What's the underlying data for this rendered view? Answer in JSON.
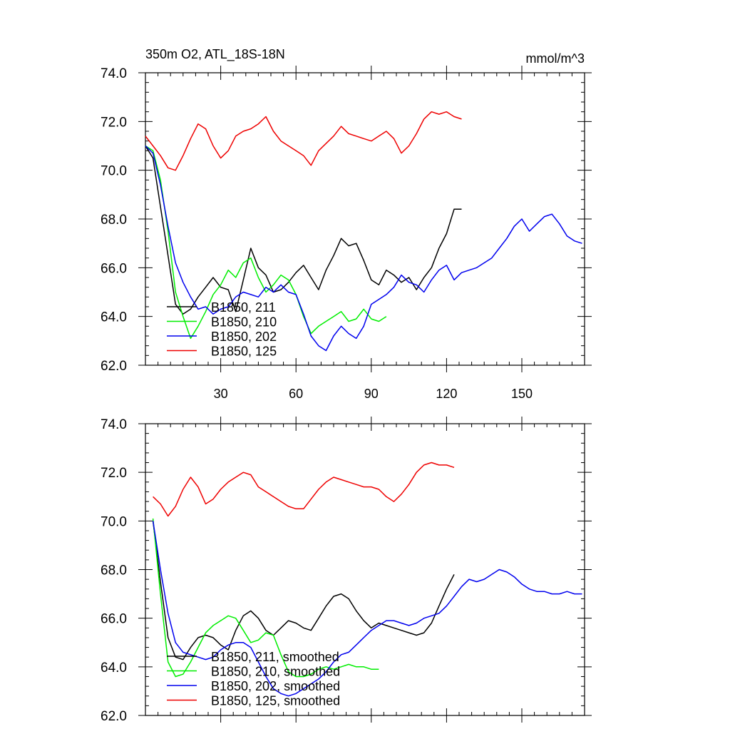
{
  "chart_data": [
    {
      "type": "line",
      "title": "350m O2, ATL_18S-18N",
      "units": "mmol/m^3",
      "xlabel": "",
      "ylabel": "",
      "xlim": [
        0,
        175
      ],
      "ylim": [
        62,
        74
      ],
      "xticks": [
        30,
        60,
        90,
        120,
        150
      ],
      "yticks": [
        62,
        64,
        66,
        68,
        70,
        72,
        74
      ],
      "ytick_labels": [
        "62.0",
        "64.0",
        "66.0",
        "68.0",
        "70.0",
        "72.0",
        "74.0"
      ],
      "grid": false,
      "legend": "lower-left",
      "series": [
        {
          "name": "B1850, 211",
          "color": "#000000",
          "x": [
            0,
            3,
            6,
            9,
            12,
            15,
            18,
            21,
            24,
            27,
            30,
            33,
            36,
            39,
            42,
            45,
            48,
            51,
            54,
            57,
            60,
            63,
            66,
            69,
            72,
            75,
            78,
            81,
            84,
            87,
            90,
            93,
            96,
            99,
            102,
            105,
            108,
            111,
            114,
            117,
            120,
            123,
            126
          ],
          "y": [
            71.0,
            70.5,
            68.5,
            66.5,
            64.5,
            64.1,
            64.3,
            64.8,
            65.2,
            65.6,
            65.2,
            65.1,
            64.2,
            65.5,
            66.8,
            66.0,
            65.7,
            65.0,
            65.1,
            65.4,
            65.8,
            66.1,
            65.6,
            65.1,
            65.9,
            66.5,
            67.2,
            66.9,
            67.0,
            66.3,
            65.5,
            65.3,
            65.9,
            65.7,
            65.4,
            65.6,
            65.1,
            65.6,
            66.0,
            66.8,
            67.4,
            68.4,
            68.4
          ]
        },
        {
          "name": "B1850, 210",
          "color": "#00ee00",
          "x": [
            0,
            3,
            6,
            9,
            12,
            15,
            18,
            21,
            24,
            27,
            30,
            33,
            36,
            39,
            42,
            45,
            48,
            51,
            54,
            57,
            60,
            63,
            66,
            69,
            72,
            75,
            78,
            81,
            84,
            87,
            90,
            93,
            96
          ],
          "y": [
            71.0,
            70.8,
            69.6,
            67.5,
            65.0,
            64.0,
            63.1,
            63.6,
            64.2,
            64.9,
            65.3,
            65.9,
            65.6,
            66.2,
            66.4,
            65.6,
            65.0,
            65.3,
            65.7,
            65.5,
            64.9,
            64.0,
            63.3,
            63.6,
            63.8,
            64.0,
            64.2,
            63.8,
            63.9,
            64.3,
            63.9,
            63.8,
            64.0
          ]
        },
        {
          "name": "B1850, 202",
          "color": "#0000ee",
          "x": [
            0,
            3,
            6,
            9,
            12,
            15,
            18,
            21,
            24,
            27,
            30,
            33,
            36,
            39,
            42,
            45,
            48,
            51,
            54,
            57,
            60,
            63,
            66,
            69,
            72,
            75,
            78,
            81,
            84,
            87,
            90,
            93,
            96,
            99,
            102,
            105,
            108,
            111,
            114,
            117,
            120,
            123,
            126,
            129,
            132,
            135,
            138,
            141,
            144,
            147,
            150,
            153,
            156,
            159,
            162,
            165,
            168,
            171,
            174
          ],
          "y": [
            71.0,
            70.7,
            69.4,
            67.7,
            66.2,
            65.4,
            64.8,
            64.3,
            64.4,
            64.1,
            64.3,
            64.4,
            64.8,
            65.0,
            64.9,
            64.8,
            65.2,
            65.0,
            65.3,
            65.0,
            64.9,
            64.1,
            63.2,
            62.8,
            62.6,
            63.2,
            63.6,
            63.3,
            63.1,
            63.6,
            64.5,
            64.7,
            64.9,
            65.2,
            65.7,
            65.4,
            65.3,
            65.0,
            65.5,
            65.9,
            66.1,
            65.5,
            65.8,
            65.9,
            66.0,
            66.2,
            66.4,
            66.8,
            67.2,
            67.7,
            68.0,
            67.5,
            67.8,
            68.1,
            68.2,
            67.8,
            67.3,
            67.1,
            67.0
          ]
        },
        {
          "name": "B1850, 125",
          "color": "#ee0000",
          "x": [
            0,
            3,
            6,
            9,
            12,
            15,
            18,
            21,
            24,
            27,
            30,
            33,
            36,
            39,
            42,
            45,
            48,
            51,
            54,
            57,
            60,
            63,
            66,
            69,
            72,
            75,
            78,
            81,
            84,
            87,
            90,
            93,
            96,
            99,
            102,
            105,
            108,
            111,
            114,
            117,
            120,
            123,
            126
          ],
          "y": [
            71.4,
            71.0,
            70.6,
            70.1,
            70.0,
            70.6,
            71.3,
            71.9,
            71.7,
            71.0,
            70.5,
            70.8,
            71.4,
            71.6,
            71.7,
            71.9,
            72.2,
            71.6,
            71.2,
            71.0,
            70.8,
            70.6,
            70.2,
            70.8,
            71.1,
            71.4,
            71.8,
            71.5,
            71.4,
            71.3,
            71.2,
            71.4,
            71.6,
            71.3,
            70.7,
            71.0,
            71.5,
            72.1,
            72.4,
            72.3,
            72.4,
            72.2,
            72.1
          ]
        }
      ]
    },
    {
      "type": "line",
      "title": "",
      "xlabel": "",
      "ylabel": "",
      "xlim": [
        0,
        175
      ],
      "ylim": [
        62,
        74
      ],
      "xticks": [
        30,
        60,
        90,
        120,
        150
      ],
      "yticks": [
        62,
        64,
        66,
        68,
        70,
        72,
        74
      ],
      "ytick_labels": [
        "62.0",
        "64.0",
        "66.0",
        "68.0",
        "70.0",
        "72.0",
        "74.0"
      ],
      "grid": false,
      "legend": "lower-left",
      "series": [
        {
          "name": "B1850, 211, smoothed",
          "color": "#000000",
          "x": [
            3,
            6,
            9,
            12,
            15,
            18,
            21,
            24,
            27,
            30,
            33,
            36,
            39,
            42,
            45,
            48,
            51,
            54,
            57,
            60,
            63,
            66,
            69,
            72,
            75,
            78,
            81,
            84,
            87,
            90,
            93,
            96,
            99,
            102,
            105,
            108,
            111,
            114,
            117,
            120,
            123
          ],
          "y": [
            70.0,
            67.5,
            65.2,
            64.4,
            64.3,
            64.8,
            65.2,
            65.3,
            65.2,
            64.9,
            64.7,
            65.5,
            66.1,
            66.3,
            66.0,
            65.5,
            65.3,
            65.6,
            65.9,
            65.8,
            65.6,
            65.5,
            66.0,
            66.5,
            66.9,
            67.0,
            66.8,
            66.3,
            65.9,
            65.6,
            65.8,
            65.7,
            65.6,
            65.5,
            65.4,
            65.3,
            65.4,
            65.8,
            66.5,
            67.2,
            67.8
          ]
        },
        {
          "name": "B1850, 210, smoothed",
          "color": "#00ee00",
          "x": [
            3,
            6,
            9,
            12,
            15,
            18,
            21,
            24,
            27,
            30,
            33,
            36,
            39,
            42,
            45,
            48,
            51,
            54,
            57,
            60,
            63,
            66,
            69,
            72,
            75,
            78,
            81,
            84,
            87,
            90,
            93
          ],
          "y": [
            70.1,
            67.0,
            64.2,
            63.6,
            63.7,
            64.2,
            64.8,
            65.4,
            65.7,
            65.9,
            66.1,
            66.0,
            65.5,
            65.0,
            65.1,
            65.4,
            65.3,
            64.5,
            63.8,
            63.6,
            63.6,
            63.7,
            63.9,
            64.0,
            63.9,
            64.0,
            64.1,
            64.0,
            64.0,
            63.9,
            63.9
          ]
        },
        {
          "name": "B1850, 202, smoothed",
          "color": "#0000ee",
          "x": [
            3,
            6,
            9,
            12,
            15,
            18,
            21,
            24,
            27,
            30,
            33,
            36,
            39,
            42,
            45,
            48,
            51,
            54,
            57,
            60,
            63,
            66,
            69,
            72,
            75,
            78,
            81,
            84,
            87,
            90,
            93,
            96,
            99,
            102,
            105,
            108,
            111,
            114,
            117,
            120,
            123,
            126,
            129,
            132,
            135,
            138,
            141,
            144,
            147,
            150,
            153,
            156,
            159,
            162,
            165,
            168,
            171,
            174
          ],
          "y": [
            70.0,
            68.0,
            66.2,
            65.0,
            64.6,
            64.5,
            64.4,
            64.3,
            64.4,
            64.7,
            64.9,
            65.0,
            65.0,
            64.8,
            64.2,
            63.6,
            63.1,
            62.9,
            62.8,
            62.9,
            63.1,
            63.3,
            63.5,
            63.8,
            64.2,
            64.5,
            64.6,
            64.9,
            65.2,
            65.5,
            65.7,
            65.9,
            65.9,
            65.8,
            65.7,
            65.8,
            66.0,
            66.1,
            66.2,
            66.5,
            66.9,
            67.3,
            67.6,
            67.5,
            67.6,
            67.8,
            68.0,
            67.9,
            67.7,
            67.4,
            67.2,
            67.1,
            67.1,
            67.0,
            67.0,
            67.1,
            67.0,
            67.0
          ]
        },
        {
          "name": "B1850, 125, smoothed",
          "color": "#ee0000",
          "x": [
            3,
            6,
            9,
            12,
            15,
            18,
            21,
            24,
            27,
            30,
            33,
            36,
            39,
            42,
            45,
            48,
            51,
            54,
            57,
            60,
            63,
            66,
            69,
            72,
            75,
            78,
            81,
            84,
            87,
            90,
            93,
            96,
            99,
            102,
            105,
            108,
            111,
            114,
            117,
            120,
            123
          ],
          "y": [
            71.0,
            70.7,
            70.2,
            70.6,
            71.3,
            71.8,
            71.4,
            70.7,
            70.9,
            71.3,
            71.6,
            71.8,
            72.0,
            71.9,
            71.4,
            71.2,
            71.0,
            70.8,
            70.6,
            70.5,
            70.5,
            70.9,
            71.3,
            71.6,
            71.8,
            71.7,
            71.6,
            71.5,
            71.4,
            71.4,
            71.3,
            71.0,
            70.8,
            71.1,
            71.5,
            72.0,
            72.3,
            72.4,
            72.3,
            72.3,
            72.2
          ]
        }
      ]
    }
  ]
}
